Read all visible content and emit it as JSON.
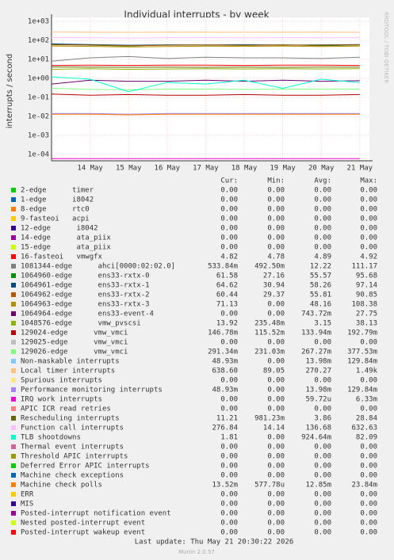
{
  "chart_data": {
    "type": "line",
    "title": "Individual interrupts - by week",
    "y_label": "interrupts / second",
    "side_text": "RRDTOOL / TOBI OETIKER",
    "log_scale": true,
    "grid": true,
    "categories": [
      null,
      "14 May",
      "15 May",
      "16 May",
      "17 May",
      "18 May",
      "19 May",
      "20 May",
      "21 May"
    ],
    "ylim": [
      4.6e-05,
      1600
    ],
    "yticks": [
      {
        "value": 0.0001,
        "label": "1e-04"
      },
      {
        "value": 0.001,
        "label": "1e-03"
      },
      {
        "value": 0.01,
        "label": "1e-02"
      },
      {
        "value": 0.1,
        "label": "1e-01"
      },
      {
        "value": 1,
        "label": "1e+00"
      },
      {
        "value": 10,
        "label": "1e+01"
      },
      {
        "value": 100,
        "label": "1e+02"
      },
      {
        "value": 1000,
        "label": "1e+03"
      }
    ],
    "stat_headers": [
      "Cur:",
      "Min:",
      "Avg:",
      "Max:"
    ],
    "series": [
      {
        "name": "2-edge      timer",
        "color": "#00cc00",
        "cur": "0.00",
        "min": "0.00",
        "avg": "0.00",
        "max": "0.00"
      },
      {
        "name": "1-edge      i8042",
        "color": "#0066b3",
        "cur": "0.00",
        "min": "0.00",
        "avg": "0.00",
        "max": "0.00"
      },
      {
        "name": "8-edge      rtc0",
        "color": "#ff8000",
        "cur": "0.00",
        "min": "0.00",
        "avg": "0.00",
        "max": "0.00"
      },
      {
        "name": "9-fasteoi   acpi",
        "color": "#ffcc00",
        "cur": "0.00",
        "min": "0.00",
        "avg": "0.00",
        "max": "0.00"
      },
      {
        "name": "12-edge      i8042",
        "color": "#330099",
        "cur": "0.00",
        "min": "0.00",
        "avg": "0.00",
        "max": "0.00"
      },
      {
        "name": "14-edge      ata_piix",
        "color": "#990099",
        "cur": "0.00",
        "min": "0.00",
        "avg": "0.00",
        "max": "0.00"
      },
      {
        "name": "15-edge      ata_piix",
        "color": "#ccff00",
        "cur": "0.00",
        "min": "0.00",
        "avg": "0.00",
        "max": "0.00"
      },
      {
        "name": "16-fasteoi   vmwgfx",
        "color": "#ff0000",
        "values": [
          4.8,
          4.9,
          4.8,
          4.9,
          4.9,
          4.8,
          4.9,
          4.9,
          4.8
        ],
        "cur": "4.82",
        "min": "4.78",
        "avg": "4.89",
        "max": "4.92"
      },
      {
        "name": "1081344-edge      ahci[0000:02:02.0]",
        "color": "#808080",
        "values": [
          8,
          12,
          14,
          11,
          13,
          12,
          12,
          11,
          13
        ],
        "cur": "533.84m",
        "min": "492.50m",
        "avg": "12.22",
        "max": "111.17"
      },
      {
        "name": "1064960-edge      ens33-rxtx-0",
        "color": "#008f00",
        "values": [
          62,
          55,
          50,
          57,
          56,
          54,
          58,
          52,
          57
        ],
        "cur": "61.58",
        "min": "27.16",
        "avg": "55.57",
        "max": "95.68"
      },
      {
        "name": "1064961-edge      ens33-rxtx-1",
        "color": "#00487d",
        "values": [
          65,
          60,
          55,
          58,
          57,
          59,
          56,
          58,
          60
        ],
        "cur": "64.62",
        "min": "30.94",
        "avg": "58.26",
        "max": "97.14"
      },
      {
        "name": "1064962-edge      ens33-rxtx-2",
        "color": "#b35a00",
        "values": [
          58,
          56,
          52,
          55,
          57,
          54,
          56,
          55,
          58
        ],
        "cur": "60.44",
        "min": "29.37",
        "avg": "55.81",
        "max": "90.85"
      },
      {
        "name": "1064963-edge      ens33-rxtx-3",
        "color": "#b38f00",
        "values": [
          50,
          48,
          45,
          47,
          49,
          48,
          50,
          47,
          49
        ],
        "cur": "71.13",
        "min": "0.00",
        "avg": "48.16",
        "max": "108.38"
      },
      {
        "name": "1064964-edge      ens33-event-4",
        "color": "#6b006b",
        "values": [
          0.5,
          0.8,
          0.7,
          0.7,
          0.8,
          0.7,
          0.8,
          0.7,
          0.75
        ],
        "cur": "0.00",
        "min": "0.00",
        "avg": "743.72m",
        "max": "27.75"
      },
      {
        "name": "1048576-edge      vmw_pvscsi",
        "color": "#8fb300",
        "values": [
          3,
          3.2,
          3,
          3.1,
          3.2,
          3.1,
          3.2,
          3.1,
          3.2
        ],
        "cur": "13.92",
        "min": "235.48m",
        "avg": "3.15",
        "max": "38.13"
      },
      {
        "name": "129024-edge      vmw_vmci",
        "color": "#b30000",
        "values": [
          0.15,
          0.13,
          0.14,
          0.13,
          0.13,
          0.14,
          0.13,
          0.13,
          0.14
        ],
        "cur": "146.78m",
        "min": "115.52m",
        "avg": "133.94m",
        "max": "192.79m"
      },
      {
        "name": "129025-edge      vmw_vmci",
        "color": "#bebebe",
        "cur": "0.00",
        "min": "0.00",
        "avg": "0.00",
        "max": "0.00"
      },
      {
        "name": "129026-edge      vmw_vmci",
        "color": "#80ff80",
        "values": [
          0.3,
          0.26,
          0.25,
          0.27,
          0.27,
          0.26,
          0.27,
          0.27,
          0.27
        ],
        "cur": "291.34m",
        "min": "231.03m",
        "avg": "267.27m",
        "max": "377.53m"
      },
      {
        "name": "Non-maskable interrupts",
        "color": "#80c9ff",
        "values": [
          0.014,
          0.014,
          0.013,
          0.014,
          0.014,
          0.014,
          0.014,
          0.014,
          0.014
        ],
        "cur": "48.93m",
        "min": "0.00",
        "avg": "13.98m",
        "max": "129.84m"
      },
      {
        "name": "Local timer interrupts",
        "color": "#ffc080",
        "values": [
          280,
          270,
          265,
          270,
          272,
          268,
          270,
          271,
          269
        ],
        "cur": "638.60",
        "min": "89.05",
        "avg": "270.27",
        "max": "1.49k"
      },
      {
        "name": "Spurious interrupts",
        "color": "#ffe680",
        "cur": "0.00",
        "min": "0.00",
        "avg": "0.00",
        "max": "0.00"
      },
      {
        "name": "Performance monitoring interrupts",
        "color": "#aa80ff",
        "values": [
          0.014,
          0.014,
          0.013,
          0.014,
          0.014,
          0.014,
          0.014,
          0.014,
          0.014
        ],
        "cur": "48.93m",
        "min": "0.00",
        "avg": "13.98m",
        "max": "129.84m"
      },
      {
        "name": "IRQ work interrupts",
        "color": "#ee00cc",
        "values": [
          6e-05,
          6e-05,
          6e-05,
          6e-05,
          6e-05,
          6e-05,
          6e-05,
          6e-05,
          6e-05
        ],
        "cur": "0.00",
        "min": "0.00",
        "avg": "59.72u",
        "max": "6.33m"
      },
      {
        "name": "APIC ICR read retries",
        "color": "#ff8080",
        "cur": "0.00",
        "min": "0.00",
        "avg": "0.00",
        "max": "0.00"
      },
      {
        "name": "Rescheduling interrupts",
        "color": "#666600",
        "values": [
          4,
          3.9,
          3.8,
          3.9,
          3.8,
          3.9,
          3.8,
          3.9,
          3.86
        ],
        "cur": "11.21",
        "min": "981.23m",
        "avg": "3.86",
        "max": "28.84"
      },
      {
        "name": "Function call interrupts",
        "color": "#ffbfff",
        "values": [
          140,
          136,
          132,
          137,
          138,
          135,
          137,
          136,
          137
        ],
        "cur": "276.84",
        "min": "14.14",
        "avg": "136.68",
        "max": "632.63"
      },
      {
        "name": "TLB shootdowns",
        "color": "#00ffcc",
        "values": [
          1.2,
          0.9,
          0.2,
          0.6,
          0.5,
          0.8,
          0.3,
          0.9,
          0.6
        ],
        "cur": "1.81",
        "min": "0.00",
        "avg": "924.64m",
        "max": "82.09"
      },
      {
        "name": "Thermal event interrupts",
        "color": "#cc6699",
        "cur": "0.00",
        "min": "0.00",
        "avg": "0.00",
        "max": "0.00"
      },
      {
        "name": "Threshold APIC interrupts",
        "color": "#999900",
        "cur": "0.00",
        "min": "0.00",
        "avg": "0.00",
        "max": "0.00"
      },
      {
        "name": "Deferred Error APIC interrupts",
        "color": "#00cc00",
        "cur": "0.00",
        "min": "0.00",
        "avg": "0.00",
        "max": "0.00"
      },
      {
        "name": "Machine check exceptions",
        "color": "#0066b3",
        "cur": "0.00",
        "min": "0.00",
        "avg": "0.00",
        "max": "0.00"
      },
      {
        "name": "Machine check polls",
        "color": "#ff8000",
        "values": [
          0.013,
          0.013,
          0.012,
          0.013,
          0.013,
          0.013,
          0.013,
          0.013,
          0.013
        ],
        "cur": "13.52m",
        "min": "577.78u",
        "avg": "12.85m",
        "max": "23.84m"
      },
      {
        "name": "ERR",
        "color": "#ffcc00",
        "cur": "0.00",
        "min": "0.00",
        "avg": "0.00",
        "max": "0.00"
      },
      {
        "name": "MIS",
        "color": "#330099",
        "cur": "0.00",
        "min": "0.00",
        "avg": "0.00",
        "max": "0.00"
      },
      {
        "name": "Posted-interrupt notification event",
        "color": "#990099",
        "cur": "0.00",
        "min": "0.00",
        "avg": "0.00",
        "max": "0.00"
      },
      {
        "name": "Nested posted-interrupt event",
        "color": "#ccff00",
        "cur": "0.00",
        "min": "0.00",
        "avg": "0.00",
        "max": "0.00"
      },
      {
        "name": "Posted-interrupt wakeup event",
        "color": "#ff0000",
        "cur": "0.00",
        "min": "0.00",
        "avg": "0.00",
        "max": "0.00"
      }
    ],
    "last_update": "Last update: Thu May 21 20:30:22 2026",
    "footer": "Munin 2.0.57"
  }
}
